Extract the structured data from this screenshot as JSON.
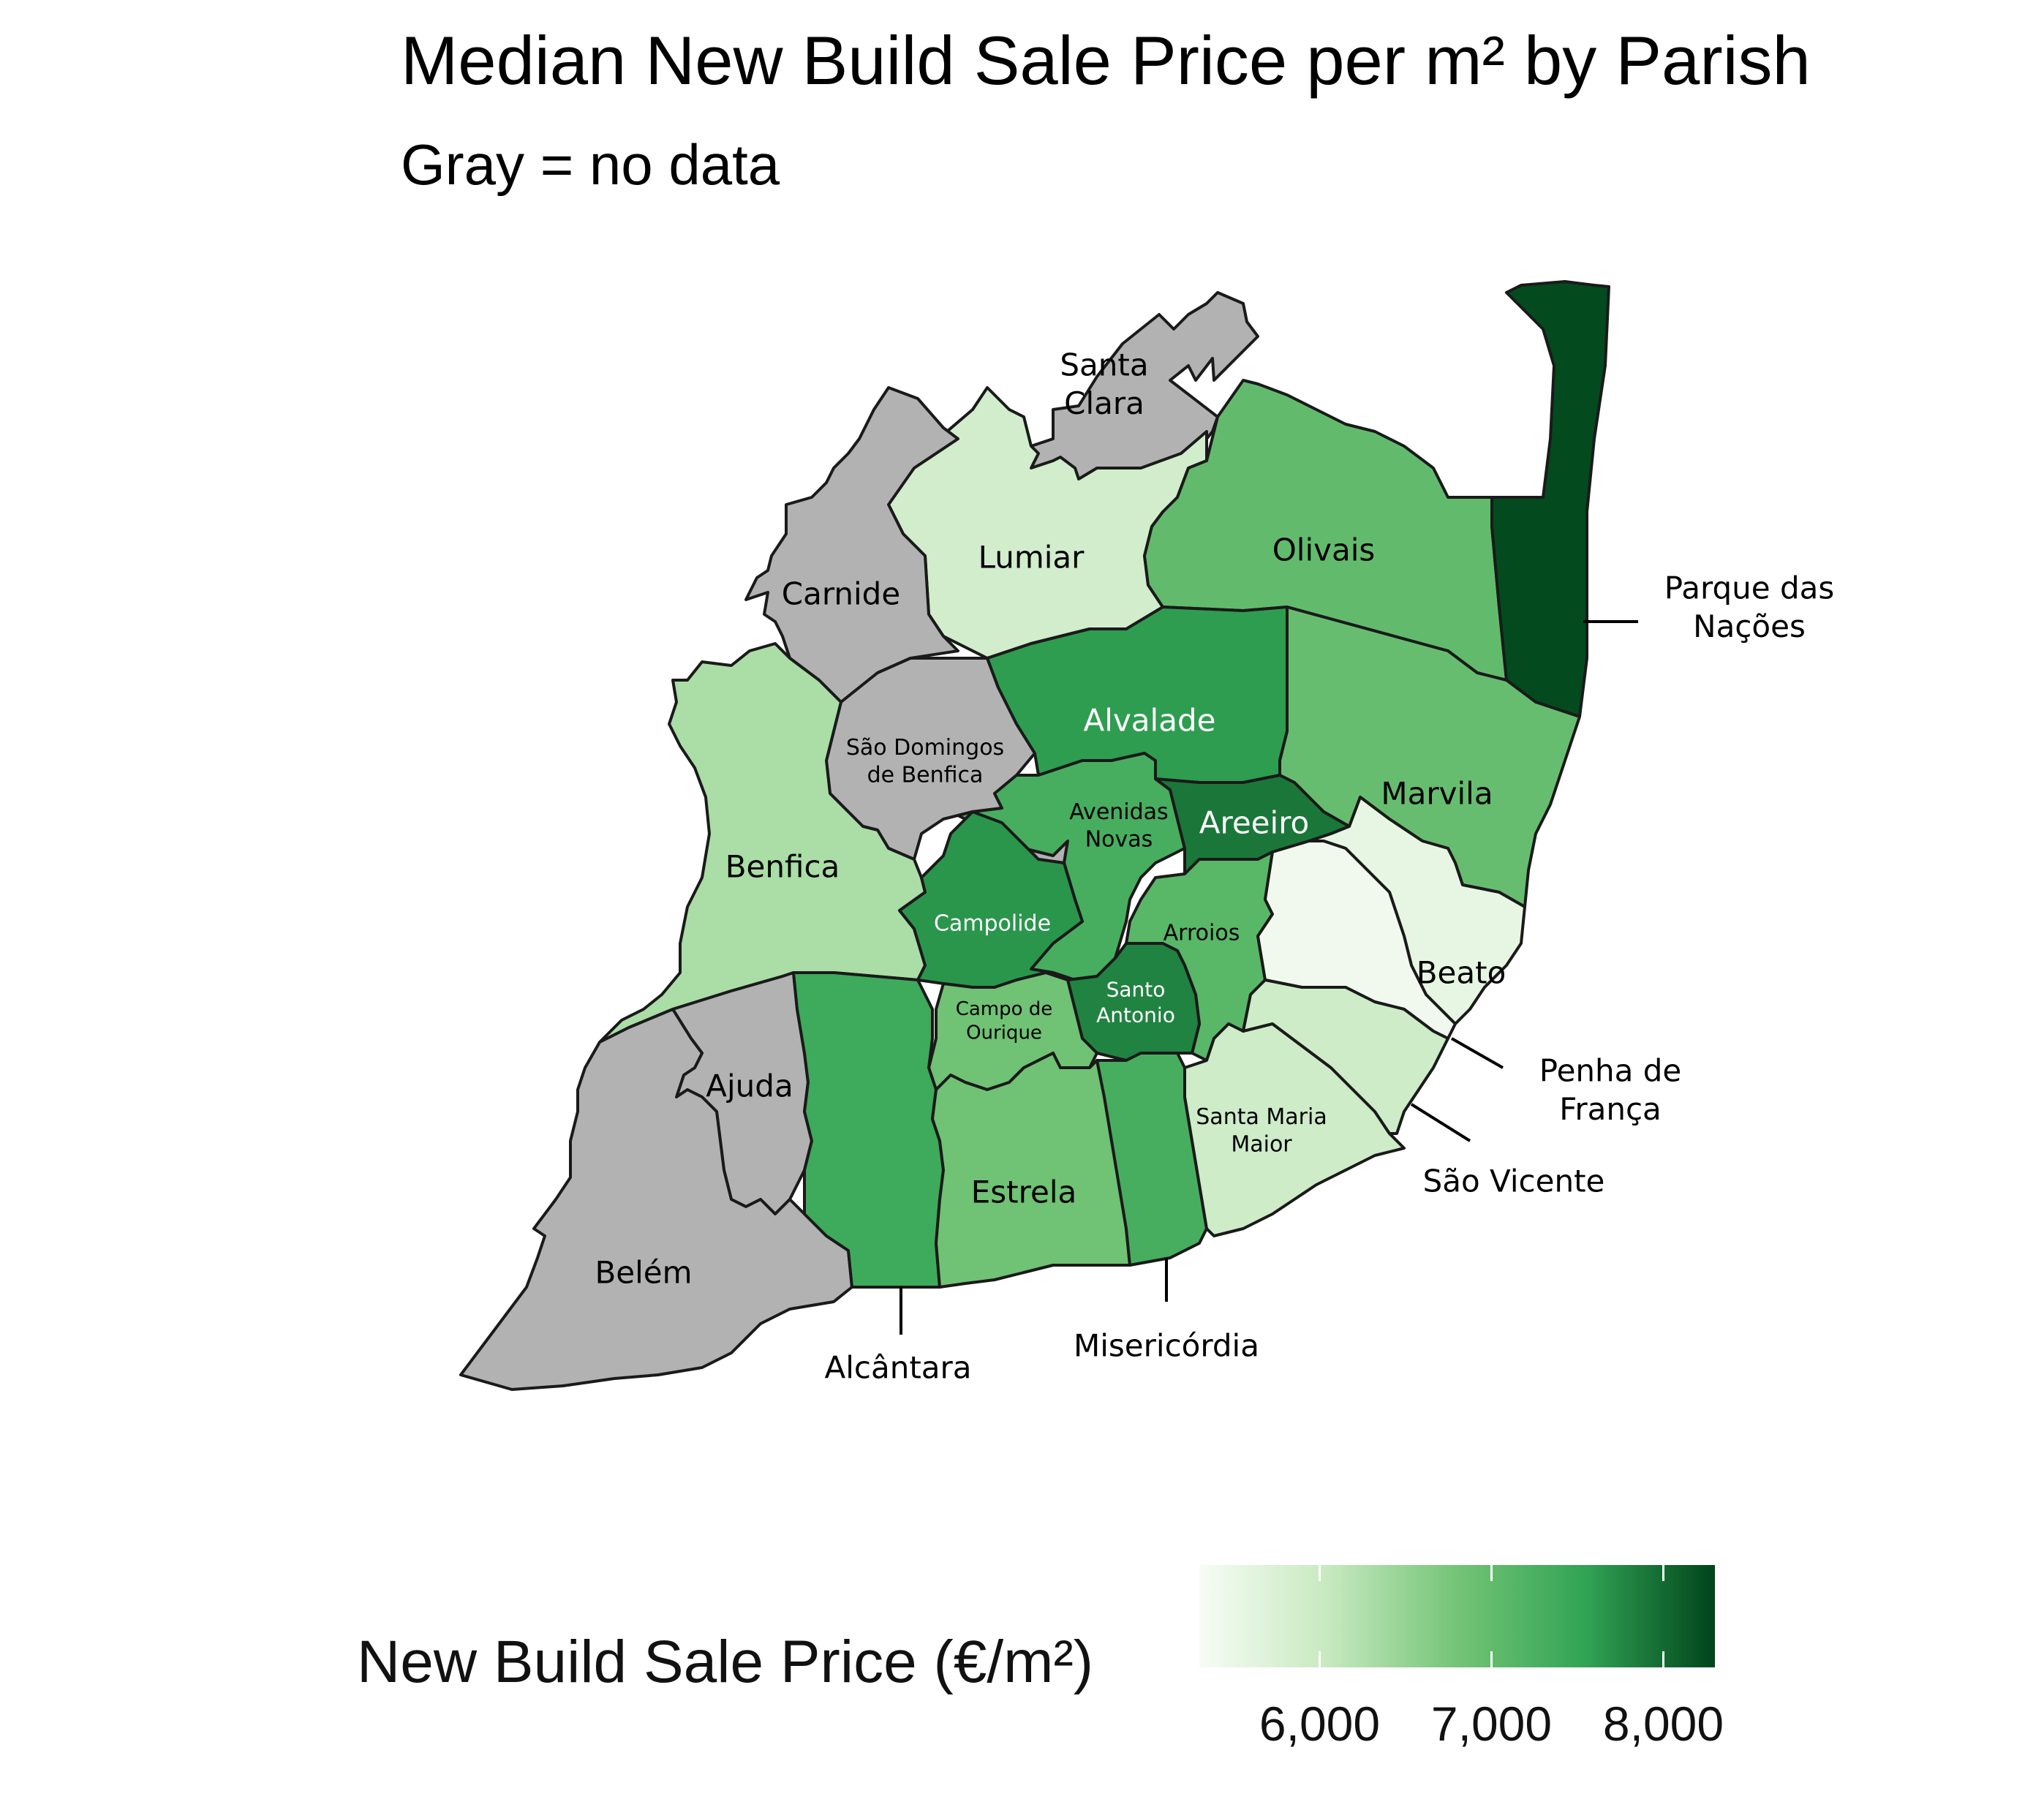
{
  "title": "Median New Build Sale Price per m² by Parish",
  "subtitle": "Gray = no data",
  "colors": {
    "no_data": "#b2b2b2",
    "scale_low": "#f7fcf5",
    "scale_mid": "#74c476",
    "scale_high": "#00441b",
    "border": "#1a1a1a"
  },
  "legend": {
    "title": "New Build Sale Price (€/m²)",
    "ticks": [
      {
        "value": 6000,
        "label": "6,000"
      },
      {
        "value": 7000,
        "label": "7,000"
      },
      {
        "value": 8000,
        "label": "8,000"
      }
    ],
    "range": [
      5300,
      8300
    ]
  },
  "parishes": [
    {
      "id": "santa-clara",
      "lines": [
        "Santa",
        "Clara"
      ],
      "price": null
    },
    {
      "id": "lumiar",
      "lines": [
        "Lumiar"
      ],
      "price": 5900
    },
    {
      "id": "olivais",
      "lines": [
        "Olivais"
      ],
      "price": 7000
    },
    {
      "id": "parque-das-nacoes",
      "lines": [
        "Parque das",
        "Nações"
      ],
      "price": 8250
    },
    {
      "id": "carnide",
      "lines": [
        "Carnide"
      ],
      "price": null
    },
    {
      "id": "sao-domingos-de-benfica",
      "lines": [
        "São Domingos",
        "de Benfica"
      ],
      "price": null
    },
    {
      "id": "alvalade",
      "lines": [
        "Alvalade"
      ],
      "price": 7600
    },
    {
      "id": "marvila",
      "lines": [
        "Marvila"
      ],
      "price": 6950
    },
    {
      "id": "benfica",
      "lines": [
        "Benfica"
      ],
      "price": 6300
    },
    {
      "id": "avenidas-novas",
      "lines": [
        "Avenidas",
        "Novas"
      ],
      "price": 7300
    },
    {
      "id": "areeiro",
      "lines": [
        "Areeiro"
      ],
      "price": 7900
    },
    {
      "id": "campolide",
      "lines": [
        "Campolide"
      ],
      "price": 7650
    },
    {
      "id": "arroios",
      "lines": [
        "Arroios"
      ],
      "price": 7100
    },
    {
      "id": "beato",
      "lines": [
        "Beato"
      ],
      "price": 5550
    },
    {
      "id": "penha-de-franca",
      "lines": [
        "Penha de",
        "França"
      ],
      "price": 5400
    },
    {
      "id": "santo-antonio",
      "lines": [
        "Santo",
        "Antonio"
      ],
      "price": 7800
    },
    {
      "id": "campo-de-ourique",
      "lines": [
        "Campo de",
        "Ourique"
      ],
      "price": 6850
    },
    {
      "id": "ajuda",
      "lines": [
        "Ajuda"
      ],
      "price": null
    },
    {
      "id": "belem",
      "lines": [
        "Belém"
      ],
      "price": null
    },
    {
      "id": "alcantara",
      "lines": [
        "Alcântara"
      ],
      "price": 7400
    },
    {
      "id": "estrela",
      "lines": [
        "Estrela"
      ],
      "price": 6850
    },
    {
      "id": "misericordia",
      "lines": [
        "Misericórdia"
      ],
      "price": 7300
    },
    {
      "id": "santa-maria-maior",
      "lines": [
        "Santa Maria",
        "Maior"
      ],
      "price": 5950
    },
    {
      "id": "sao-vicente",
      "lines": [
        "São Vicente"
      ],
      "price": 5950
    }
  ]
}
